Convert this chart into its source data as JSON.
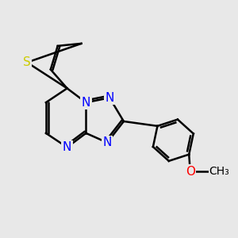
{
  "bg_color": "#e8e8e8",
  "bond_color": "#000000",
  "bond_width": 1.8,
  "N_color": "#0000ff",
  "S_color": "#cccc00",
  "O_color": "#ff0000",
  "font_size": 11,
  "xlim": [
    0,
    10
  ],
  "ylim": [
    0,
    10
  ],
  "figsize": [
    3.0,
    3.0
  ],
  "dpi": 100
}
